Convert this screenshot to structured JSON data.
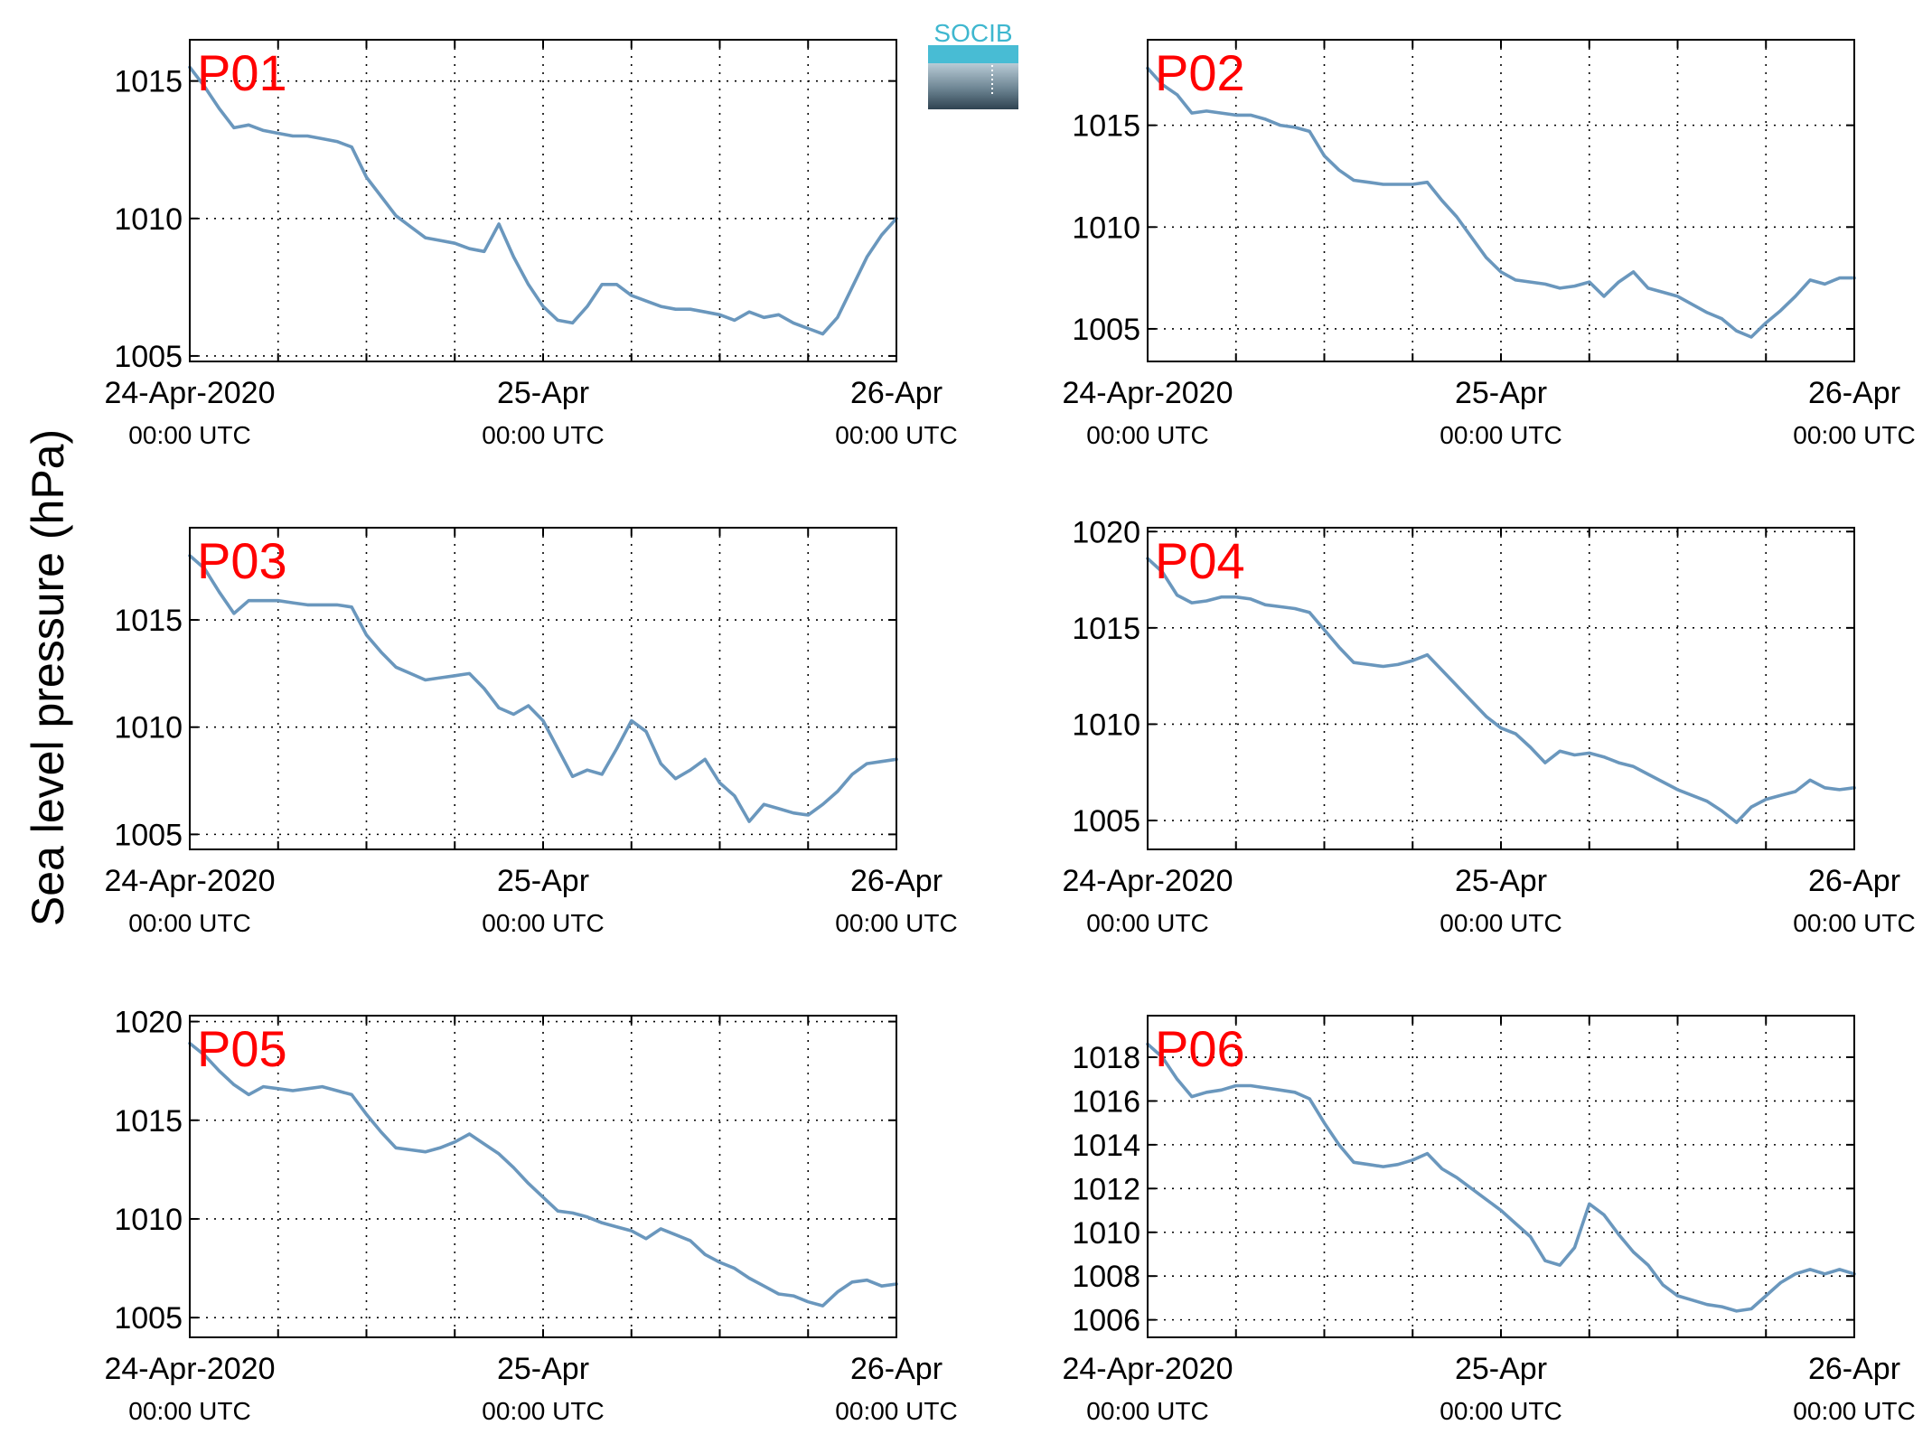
{
  "figure": {
    "ylabel": "Sea level pressure (hPa)",
    "logo_text": "SOCIB"
  },
  "chart_data": [
    {
      "type": "line",
      "panel": "P01",
      "ylabel": "Sea level pressure (hPa)",
      "x_ticks": [
        {
          "date": "24-Apr-2020",
          "time": "00:00 UTC",
          "x_hours": 0
        },
        {
          "date": "25-Apr",
          "time": "00:00 UTC",
          "x_hours": 24
        },
        {
          "date": "26-Apr",
          "time": "00:00 UTC",
          "x_hours": 48
        }
      ],
      "xlim_hours": [
        0,
        48
      ],
      "ylim": [
        1004.8,
        1016.5
      ],
      "yticks": [
        1005,
        1010,
        1015
      ],
      "grid": true,
      "color": "#6a97bd",
      "series": [
        {
          "x_hours": [
            0,
            1,
            2,
            3,
            4,
            5,
            6,
            7,
            8,
            9,
            10,
            11,
            12,
            13,
            14,
            15,
            16,
            17,
            18,
            19,
            20,
            21,
            22,
            23,
            24,
            25,
            26,
            27,
            28,
            29,
            30,
            31,
            32,
            33,
            34,
            35,
            36,
            37,
            38,
            39,
            40,
            41,
            42,
            43,
            44,
            45,
            46,
            47,
            48
          ],
          "values": [
            1015.5,
            1014.8,
            1014.0,
            1013.3,
            1013.4,
            1013.2,
            1013.1,
            1013.0,
            1013.0,
            1012.9,
            1012.8,
            1012.6,
            1011.5,
            1010.8,
            1010.1,
            1009.7,
            1009.3,
            1009.2,
            1009.1,
            1008.9,
            1008.8,
            1009.8,
            1008.6,
            1007.6,
            1006.8,
            1006.3,
            1006.2,
            1006.8,
            1007.6,
            1007.6,
            1007.2,
            1007.0,
            1006.8,
            1006.7,
            1006.7,
            1006.6,
            1006.5,
            1006.3,
            1006.6,
            1006.4,
            1006.5,
            1006.2,
            1006.0,
            1005.8,
            1006.4,
            1007.5,
            1008.6,
            1009.4,
            1010.0
          ]
        }
      ]
    },
    {
      "type": "line",
      "panel": "P02",
      "ylabel": "Sea level pressure (hPa)",
      "x_ticks": [
        {
          "date": "24-Apr-2020",
          "time": "00:00 UTC",
          "x_hours": 0
        },
        {
          "date": "25-Apr",
          "time": "00:00 UTC",
          "x_hours": 24
        },
        {
          "date": "26-Apr",
          "time": "00:00 UTC",
          "x_hours": 48
        }
      ],
      "xlim_hours": [
        0,
        48
      ],
      "ylim": [
        1003.4,
        1019.2
      ],
      "yticks": [
        1005,
        1010,
        1015
      ],
      "grid": true,
      "color": "#6a97bd",
      "series": [
        {
          "x_hours": [
            0,
            1,
            2,
            3,
            4,
            5,
            6,
            7,
            8,
            9,
            10,
            11,
            12,
            13,
            14,
            15,
            16,
            17,
            18,
            19,
            20,
            21,
            22,
            23,
            24,
            25,
            26,
            27,
            28,
            29,
            30,
            31,
            32,
            33,
            34,
            35,
            36,
            37,
            38,
            39,
            40,
            41,
            42,
            43,
            44,
            45,
            46,
            47,
            48
          ],
          "values": [
            1017.8,
            1017.0,
            1016.5,
            1015.6,
            1015.7,
            1015.6,
            1015.5,
            1015.5,
            1015.3,
            1015.0,
            1014.9,
            1014.7,
            1013.5,
            1012.8,
            1012.3,
            1012.2,
            1012.1,
            1012.1,
            1012.1,
            1012.2,
            1011.3,
            1010.5,
            1009.5,
            1008.5,
            1007.8,
            1007.4,
            1007.3,
            1007.2,
            1007.0,
            1007.1,
            1007.3,
            1006.6,
            1007.3,
            1007.8,
            1007.0,
            1006.8,
            1006.6,
            1006.2,
            1005.8,
            1005.5,
            1004.9,
            1004.6,
            1005.3,
            1005.9,
            1006.6,
            1007.4,
            1007.2,
            1007.5,
            1007.5
          ]
        }
      ]
    },
    {
      "type": "line",
      "panel": "P03",
      "ylabel": "Sea level pressure (hPa)",
      "x_ticks": [
        {
          "date": "24-Apr-2020",
          "time": "00:00 UTC",
          "x_hours": 0
        },
        {
          "date": "25-Apr",
          "time": "00:00 UTC",
          "x_hours": 24
        },
        {
          "date": "26-Apr",
          "time": "00:00 UTC",
          "x_hours": 48
        }
      ],
      "xlim_hours": [
        0,
        48
      ],
      "ylim": [
        1004.3,
        1019.3
      ],
      "yticks": [
        1005,
        1010,
        1015
      ],
      "grid": true,
      "color": "#6a97bd",
      "series": [
        {
          "x_hours": [
            0,
            1,
            2,
            3,
            4,
            5,
            6,
            7,
            8,
            9,
            10,
            11,
            12,
            13,
            14,
            15,
            16,
            17,
            18,
            19,
            20,
            21,
            22,
            23,
            24,
            25,
            26,
            27,
            28,
            29,
            30,
            31,
            32,
            33,
            34,
            35,
            36,
            37,
            38,
            39,
            40,
            41,
            42,
            43,
            44,
            45,
            46,
            47,
            48
          ],
          "values": [
            1018.0,
            1017.4,
            1016.3,
            1015.3,
            1015.9,
            1015.9,
            1015.9,
            1015.8,
            1015.7,
            1015.7,
            1015.7,
            1015.6,
            1014.3,
            1013.5,
            1012.8,
            1012.5,
            1012.2,
            1012.3,
            1012.4,
            1012.5,
            1011.8,
            1010.9,
            1010.6,
            1011.0,
            1010.3,
            1009.0,
            1007.7,
            1008.0,
            1007.8,
            1009.0,
            1010.3,
            1009.8,
            1008.3,
            1007.6,
            1008.0,
            1008.5,
            1007.4,
            1006.8,
            1005.6,
            1006.4,
            1006.2,
            1006.0,
            1005.9,
            1006.4,
            1007.0,
            1007.8,
            1008.3,
            1008.4,
            1008.5
          ]
        }
      ]
    },
    {
      "type": "line",
      "panel": "P04",
      "ylabel": "Sea level pressure (hPa)",
      "x_ticks": [
        {
          "date": "24-Apr-2020",
          "time": "00:00 UTC",
          "x_hours": 0
        },
        {
          "date": "25-Apr",
          "time": "00:00 UTC",
          "x_hours": 24
        },
        {
          "date": "26-Apr",
          "time": "00:00 UTC",
          "x_hours": 48
        }
      ],
      "xlim_hours": [
        0,
        48
      ],
      "ylim": [
        1003.5,
        1020.2
      ],
      "yticks": [
        1005,
        1010,
        1015,
        1020
      ],
      "grid": true,
      "color": "#6a97bd",
      "series": [
        {
          "x_hours": [
            0,
            1,
            2,
            3,
            4,
            5,
            6,
            7,
            8,
            9,
            10,
            11,
            12,
            13,
            14,
            15,
            16,
            17,
            18,
            19,
            20,
            21,
            22,
            23,
            24,
            25,
            26,
            27,
            28,
            29,
            30,
            31,
            32,
            33,
            34,
            35,
            36,
            37,
            38,
            39,
            40,
            41,
            42,
            43,
            44,
            45,
            46,
            47,
            48
          ],
          "values": [
            1018.6,
            1017.9,
            1016.7,
            1016.3,
            1016.4,
            1016.6,
            1016.6,
            1016.5,
            1016.2,
            1016.1,
            1016.0,
            1015.8,
            1014.9,
            1014.0,
            1013.2,
            1013.1,
            1013.0,
            1013.1,
            1013.3,
            1013.6,
            1012.8,
            1012.0,
            1011.2,
            1010.4,
            1009.8,
            1009.5,
            1008.8,
            1008.0,
            1008.6,
            1008.4,
            1008.5,
            1008.3,
            1008.0,
            1007.8,
            1007.4,
            1007.0,
            1006.6,
            1006.3,
            1006.0,
            1005.5,
            1004.9,
            1005.7,
            1006.1,
            1006.3,
            1006.5,
            1007.1,
            1006.7,
            1006.6,
            1006.7
          ]
        }
      ]
    },
    {
      "type": "line",
      "panel": "P05",
      "ylabel": "Sea level pressure (hPa)",
      "x_ticks": [
        {
          "date": "24-Apr-2020",
          "time": "00:00 UTC",
          "x_hours": 0
        },
        {
          "date": "25-Apr",
          "time": "00:00 UTC",
          "x_hours": 24
        },
        {
          "date": "26-Apr",
          "time": "00:00 UTC",
          "x_hours": 48
        }
      ],
      "xlim_hours": [
        0,
        48
      ],
      "ylim": [
        1004.0,
        1020.3
      ],
      "yticks": [
        1005,
        1010,
        1015,
        1020
      ],
      "grid": true,
      "color": "#6a97bd",
      "series": [
        {
          "x_hours": [
            0,
            1,
            2,
            3,
            4,
            5,
            6,
            7,
            8,
            9,
            10,
            11,
            12,
            13,
            14,
            15,
            16,
            17,
            18,
            19,
            20,
            21,
            22,
            23,
            24,
            25,
            26,
            27,
            28,
            29,
            30,
            31,
            32,
            33,
            34,
            35,
            36,
            37,
            38,
            39,
            40,
            41,
            42,
            43,
            44,
            45,
            46,
            47,
            48
          ],
          "values": [
            1018.9,
            1018.3,
            1017.5,
            1016.8,
            1016.3,
            1016.7,
            1016.6,
            1016.5,
            1016.6,
            1016.7,
            1016.5,
            1016.3,
            1015.3,
            1014.4,
            1013.6,
            1013.5,
            1013.4,
            1013.6,
            1013.9,
            1014.3,
            1013.8,
            1013.3,
            1012.6,
            1011.8,
            1011.1,
            1010.4,
            1010.3,
            1010.1,
            1009.8,
            1009.6,
            1009.4,
            1009.0,
            1009.5,
            1009.2,
            1008.9,
            1008.2,
            1007.8,
            1007.5,
            1007.0,
            1006.6,
            1006.2,
            1006.1,
            1005.8,
            1005.6,
            1006.3,
            1006.8,
            1006.9,
            1006.6,
            1006.7
          ]
        }
      ]
    },
    {
      "type": "line",
      "panel": "P06",
      "ylabel": "Sea level pressure (hPa)",
      "x_ticks": [
        {
          "date": "24-Apr-2020",
          "time": "00:00 UTC",
          "x_hours": 0
        },
        {
          "date": "25-Apr",
          "time": "00:00 UTC",
          "x_hours": 24
        },
        {
          "date": "26-Apr",
          "time": "00:00 UTC",
          "x_hours": 48
        }
      ],
      "xlim_hours": [
        0,
        48
      ],
      "ylim": [
        1005.2,
        1019.9
      ],
      "yticks": [
        1006,
        1008,
        1010,
        1012,
        1014,
        1016,
        1018
      ],
      "grid": true,
      "color": "#6a97bd",
      "series": [
        {
          "x_hours": [
            0,
            1,
            2,
            3,
            4,
            5,
            6,
            7,
            8,
            9,
            10,
            11,
            12,
            13,
            14,
            15,
            16,
            17,
            18,
            19,
            20,
            21,
            22,
            23,
            24,
            25,
            26,
            27,
            28,
            29,
            30,
            31,
            32,
            33,
            34,
            35,
            36,
            37,
            38,
            39,
            40,
            41,
            42,
            43,
            44,
            45,
            46,
            47,
            48
          ],
          "values": [
            1018.6,
            1018.0,
            1017.0,
            1016.2,
            1016.4,
            1016.5,
            1016.7,
            1016.7,
            1016.6,
            1016.5,
            1016.4,
            1016.1,
            1015.0,
            1014.0,
            1013.2,
            1013.1,
            1013.0,
            1013.1,
            1013.3,
            1013.6,
            1012.9,
            1012.5,
            1012.0,
            1011.5,
            1011.0,
            1010.4,
            1009.8,
            1008.7,
            1008.5,
            1009.3,
            1011.3,
            1010.8,
            1009.9,
            1009.1,
            1008.5,
            1007.6,
            1007.1,
            1006.9,
            1006.7,
            1006.6,
            1006.4,
            1006.5,
            1007.1,
            1007.7,
            1008.1,
            1008.3,
            1008.1,
            1008.3,
            1008.1
          ]
        }
      ]
    }
  ]
}
